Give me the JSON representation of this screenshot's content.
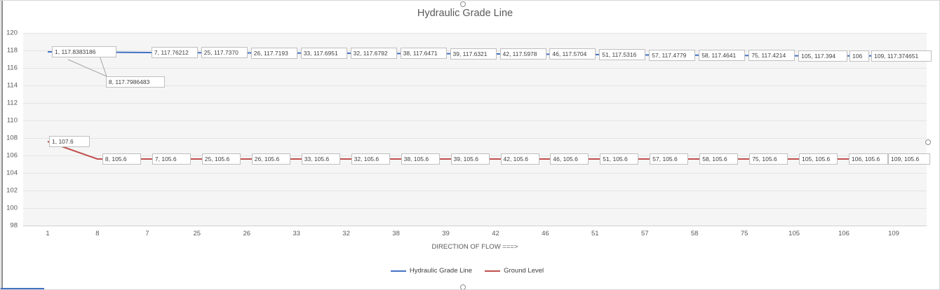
{
  "chart_data": {
    "type": "line",
    "title": "Hydraulic Grade Line",
    "xlabel": "DIRECTION OF FLOW ===>",
    "ylabel": "",
    "categories": [
      "1",
      "8",
      "7",
      "25",
      "26",
      "33",
      "32",
      "38",
      "39",
      "42",
      "46",
      "51",
      "57",
      "58",
      "75",
      "105",
      "106",
      "109"
    ],
    "yticks": [
      "120",
      "118",
      "116",
      "114",
      "112",
      "110",
      "108",
      "106",
      "104",
      "102",
      "100",
      "98"
    ],
    "ylim": [
      98,
      120
    ],
    "ytick_step": 2,
    "grid": true,
    "legend_position": "bottom",
    "series": [
      {
        "name": "Hydraulic Grade Line",
        "color": "#4472C4",
        "values": [
          117.8383186,
          117.7986483,
          117.76212,
          117.737,
          117.7193,
          117.6951,
          117.6792,
          117.6471,
          117.6321,
          117.5978,
          117.5704,
          117.5316,
          117.4779,
          117.4641,
          117.4214,
          117.394,
          117.38,
          117.374651
        ],
        "labels": [
          "1, 117.8383186",
          "8, 117.7986483",
          "7, 117.76212",
          "25, 117.7370",
          "26, 117.7193",
          "33, 117.6951",
          "32, 117.6792",
          "38, 117.6471",
          "39, 117.6321",
          "42, 117.5978",
          "46, 117.5704",
          "51, 117.5316",
          "57, 117.4779",
          "58, 117.4641",
          "75, 117.4214",
          "105, 117.394",
          "106",
          "109, 117.374651"
        ]
      },
      {
        "name": "Ground Level",
        "color": "#C0504D",
        "values": [
          107.6,
          105.6,
          105.6,
          105.6,
          105.6,
          105.6,
          105.6,
          105.6,
          105.6,
          105.6,
          105.6,
          105.6,
          105.6,
          105.6,
          105.6,
          105.6,
          105.6,
          105.6
        ],
        "labels": [
          "1, 107.6",
          "8, 105.6",
          "7, 105.6",
          "25, 105.6",
          "26, 105.6",
          "33, 105.6",
          "32, 105.6",
          "38, 105.6",
          "39, 105.6",
          "42, 105.6",
          "46, 105.6",
          "51, 105.6",
          "57, 105.6",
          "58, 105.6",
          "75, 105.6",
          "105, 105.6",
          "106, 105.6",
          "109, 105.6"
        ]
      }
    ],
    "colors": {
      "grid": "#E4E4E4",
      "axis_text": "#595959",
      "label_border": "#BFBFBF",
      "label_text": "#3F3F3F"
    }
  }
}
